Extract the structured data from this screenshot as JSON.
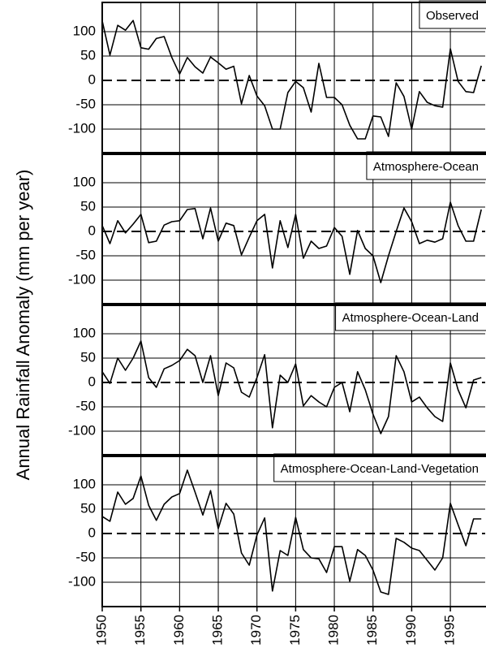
{
  "y_label": "Annual Rainfall Anomaly (mm per year)",
  "chart_data": [
    {
      "type": "line",
      "title": "Observed",
      "color": "#000000",
      "x": [
        1950,
        1951,
        1952,
        1953,
        1954,
        1955,
        1956,
        1957,
        1958,
        1959,
        1960,
        1961,
        1962,
        1963,
        1964,
        1965,
        1966,
        1967,
        1968,
        1969,
        1970,
        1971,
        1972,
        1973,
        1974,
        1975,
        1976,
        1977,
        1978,
        1979,
        1980,
        1981,
        1982,
        1983,
        1984,
        1985,
        1986,
        1987,
        1988,
        1989,
        1990,
        1991,
        1992,
        1993,
        1994,
        1995,
        1996,
        1997,
        1998,
        1999
      ],
      "values": [
        122,
        52,
        113,
        103,
        123,
        67,
        64,
        86,
        90,
        47,
        13,
        47,
        28,
        15,
        48,
        36,
        23,
        29,
        -48,
        10,
        -32,
        -52,
        -100,
        -100,
        -25,
        -2,
        -15,
        -65,
        35,
        -35,
        -35,
        -50,
        -92,
        -120,
        -120,
        -73,
        -75,
        -115,
        -5,
        -33,
        -100,
        -23,
        -45,
        -52,
        -55,
        65,
        -2,
        -23,
        -25,
        30
      ],
      "xlim": [
        1950,
        1999.5
      ],
      "xticks": [
        1950,
        1955,
        1960,
        1965,
        1970,
        1975,
        1980,
        1985,
        1990,
        1995
      ],
      "ylim": [
        -150,
        160
      ],
      "yticks": [
        -100,
        -50,
        0,
        50,
        100
      ],
      "grid": true
    },
    {
      "type": "line",
      "title": "Atmosphere-Ocean",
      "color": "#000000",
      "x": [
        1950,
        1951,
        1952,
        1953,
        1954,
        1955,
        1956,
        1957,
        1958,
        1959,
        1960,
        1961,
        1962,
        1963,
        1964,
        1965,
        1966,
        1967,
        1968,
        1969,
        1970,
        1971,
        1972,
        1973,
        1974,
        1975,
        1976,
        1977,
        1978,
        1979,
        1980,
        1981,
        1982,
        1983,
        1984,
        1985,
        1986,
        1987,
        1988,
        1989,
        1990,
        1991,
        1992,
        1993,
        1994,
        1995,
        1996,
        1997,
        1998,
        1999
      ],
      "values": [
        12,
        -25,
        22,
        -3,
        15,
        35,
        -23,
        -20,
        13,
        20,
        22,
        45,
        47,
        -15,
        48,
        -20,
        17,
        12,
        -48,
        -12,
        22,
        35,
        -75,
        22,
        -33,
        35,
        -55,
        -20,
        -35,
        -30,
        8,
        -10,
        -88,
        2,
        -35,
        -50,
        -105,
        -50,
        0,
        48,
        20,
        -25,
        -18,
        -22,
        -15,
        60,
        12,
        -20,
        -20,
        45
      ],
      "xlim": [
        1950,
        1999.5
      ],
      "xticks": [
        1950,
        1955,
        1960,
        1965,
        1970,
        1975,
        1980,
        1985,
        1990,
        1995
      ],
      "ylim": [
        -150,
        160
      ],
      "yticks": [
        -100,
        -50,
        0,
        50,
        100
      ],
      "grid": true
    },
    {
      "type": "line",
      "title": "Atmosphere-Ocean-Land",
      "color": "#000000",
      "x": [
        1950,
        1951,
        1952,
        1953,
        1954,
        1955,
        1956,
        1957,
        1958,
        1959,
        1960,
        1961,
        1962,
        1963,
        1964,
        1965,
        1966,
        1967,
        1968,
        1969,
        1970,
        1971,
        1972,
        1973,
        1974,
        1975,
        1976,
        1977,
        1978,
        1979,
        1980,
        1981,
        1982,
        1983,
        1984,
        1985,
        1986,
        1987,
        1988,
        1989,
        1990,
        1991,
        1992,
        1993,
        1994,
        1995,
        1996,
        1997,
        1998,
        1999
      ],
      "values": [
        22,
        -2,
        50,
        25,
        50,
        85,
        10,
        -10,
        28,
        35,
        45,
        68,
        55,
        0,
        55,
        -27,
        40,
        30,
        -20,
        -30,
        10,
        57,
        -93,
        15,
        0,
        38,
        -48,
        -27,
        -40,
        -50,
        -10,
        0,
        -60,
        22,
        -15,
        -65,
        -105,
        -70,
        55,
        22,
        -40,
        -30,
        -52,
        -70,
        -80,
        40,
        -15,
        -52,
        5,
        10
      ],
      "xlim": [
        1950,
        1999.5
      ],
      "xticks": [
        1950,
        1955,
        1960,
        1965,
        1970,
        1975,
        1980,
        1985,
        1990,
        1995
      ],
      "ylim": [
        -150,
        160
      ],
      "yticks": [
        -100,
        -50,
        0,
        50,
        100
      ],
      "grid": true
    },
    {
      "type": "line",
      "title": "Atmosphere-Ocean-Land-Vegetation",
      "color": "#000000",
      "x": [
        1950,
        1951,
        1952,
        1953,
        1954,
        1955,
        1956,
        1957,
        1958,
        1959,
        1960,
        1961,
        1962,
        1963,
        1964,
        1965,
        1966,
        1967,
        1968,
        1969,
        1970,
        1971,
        1972,
        1973,
        1974,
        1975,
        1976,
        1977,
        1978,
        1979,
        1980,
        1981,
        1982,
        1983,
        1984,
        1985,
        1986,
        1987,
        1988,
        1989,
        1990,
        1991,
        1992,
        1993,
        1994,
        1995,
        1996,
        1997,
        1998,
        1999
      ],
      "values": [
        35,
        25,
        85,
        60,
        72,
        118,
        58,
        27,
        60,
        75,
        82,
        130,
        85,
        38,
        88,
        10,
        62,
        40,
        -40,
        -65,
        -3,
        32,
        -118,
        -35,
        -45,
        33,
        -33,
        -50,
        -52,
        -80,
        -27,
        -27,
        -98,
        -33,
        -45,
        -75,
        -120,
        -125,
        -10,
        -18,
        -30,
        -35,
        -55,
        -75,
        -50,
        62,
        18,
        -25,
        30,
        30
      ],
      "xlim": [
        1950,
        1999.5
      ],
      "xticks": [
        1950,
        1955,
        1960,
        1965,
        1970,
        1975,
        1980,
        1985,
        1990,
        1995
      ],
      "ylim": [
        -150,
        160
      ],
      "yticks": [
        -100,
        -50,
        0,
        50,
        100
      ],
      "grid": true
    }
  ]
}
